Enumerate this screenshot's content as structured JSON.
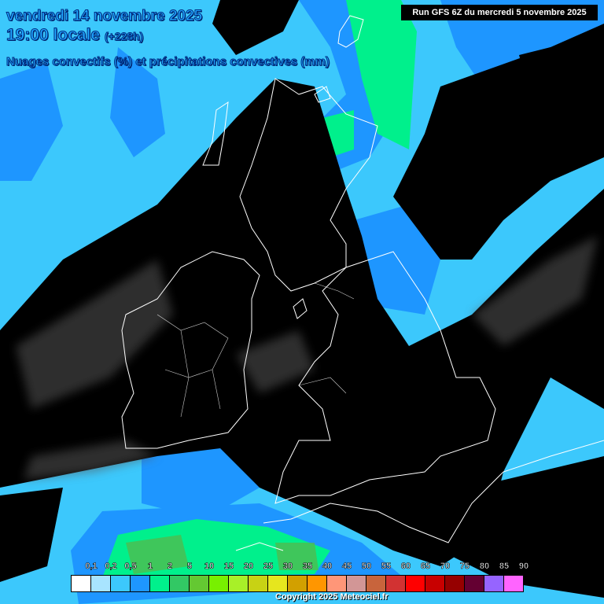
{
  "header": {
    "date": "vendredi 14 novembre 2025",
    "time": "19:00 locale",
    "lead": "(+228h)",
    "subtitle": "Nuages convectifs (%) et précipitations convectives (mm)",
    "run": "Run GFS 6Z du mercredi 5 novembre 2025"
  },
  "legend": {
    "labels": [
      "0,1",
      "0,2",
      "0,5",
      "1",
      "2",
      "5",
      "10",
      "15",
      "20",
      "25",
      "30",
      "35",
      "40",
      "45",
      "50",
      "55",
      "60",
      "65",
      "70",
      "75",
      "80",
      "85",
      "90"
    ],
    "colors": [
      "#ffffff",
      "#a8e4ff",
      "#3cc8fc",
      "#1e96ff",
      "#00f08c",
      "#32c864",
      "#64c832",
      "#78f000",
      "#a8f028",
      "#c8d214",
      "#e6e61e",
      "#d2a000",
      "#ff9600",
      "#ff9678",
      "#d29696",
      "#c8643c",
      "#d23232",
      "#ff0000",
      "#c80000",
      "#960000",
      "#640032",
      "#9664ff",
      "#ff64ff"
    ]
  },
  "map_colors": {
    "land_cloud": "#000000",
    "light_blue": "#3cc8fc",
    "mid_blue": "#1e96ff",
    "green": "#00f08c",
    "coast": "#ffffff"
  },
  "copyright": "Copyright 2025 Meteociel.fr"
}
